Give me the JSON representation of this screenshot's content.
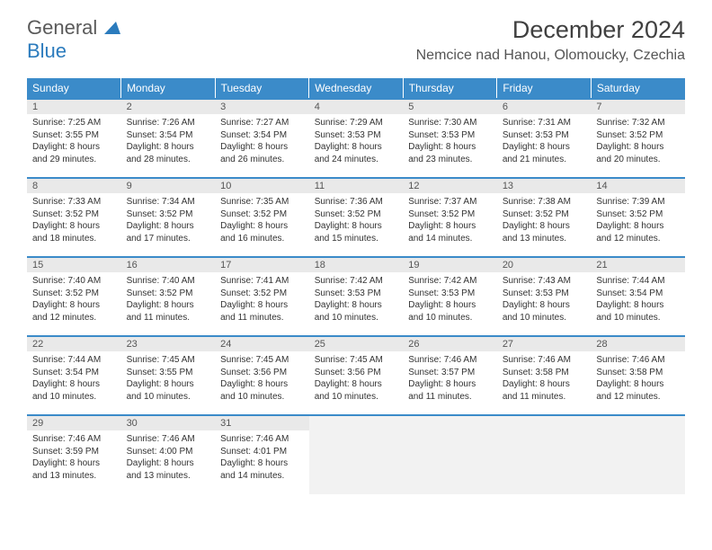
{
  "logo": {
    "word1": "General",
    "word2": "Blue"
  },
  "title": {
    "month_year": "December 2024",
    "location": "Nemcice nad Hanou, Olomoucky, Czechia"
  },
  "colors": {
    "header_bg": "#3b8bc9",
    "daynum_bg": "#e9e9e9",
    "row_border": "#3b8bc9",
    "empty_bg": "#f2f2f2"
  },
  "weekdays": [
    "Sunday",
    "Monday",
    "Tuesday",
    "Wednesday",
    "Thursday",
    "Friday",
    "Saturday"
  ],
  "weeks": [
    [
      {
        "n": "1",
        "sr": "Sunrise: 7:25 AM",
        "ss": "Sunset: 3:55 PM",
        "d1": "Daylight: 8 hours",
        "d2": "and 29 minutes."
      },
      {
        "n": "2",
        "sr": "Sunrise: 7:26 AM",
        "ss": "Sunset: 3:54 PM",
        "d1": "Daylight: 8 hours",
        "d2": "and 28 minutes."
      },
      {
        "n": "3",
        "sr": "Sunrise: 7:27 AM",
        "ss": "Sunset: 3:54 PM",
        "d1": "Daylight: 8 hours",
        "d2": "and 26 minutes."
      },
      {
        "n": "4",
        "sr": "Sunrise: 7:29 AM",
        "ss": "Sunset: 3:53 PM",
        "d1": "Daylight: 8 hours",
        "d2": "and 24 minutes."
      },
      {
        "n": "5",
        "sr": "Sunrise: 7:30 AM",
        "ss": "Sunset: 3:53 PM",
        "d1": "Daylight: 8 hours",
        "d2": "and 23 minutes."
      },
      {
        "n": "6",
        "sr": "Sunrise: 7:31 AM",
        "ss": "Sunset: 3:53 PM",
        "d1": "Daylight: 8 hours",
        "d2": "and 21 minutes."
      },
      {
        "n": "7",
        "sr": "Sunrise: 7:32 AM",
        "ss": "Sunset: 3:52 PM",
        "d1": "Daylight: 8 hours",
        "d2": "and 20 minutes."
      }
    ],
    [
      {
        "n": "8",
        "sr": "Sunrise: 7:33 AM",
        "ss": "Sunset: 3:52 PM",
        "d1": "Daylight: 8 hours",
        "d2": "and 18 minutes."
      },
      {
        "n": "9",
        "sr": "Sunrise: 7:34 AM",
        "ss": "Sunset: 3:52 PM",
        "d1": "Daylight: 8 hours",
        "d2": "and 17 minutes."
      },
      {
        "n": "10",
        "sr": "Sunrise: 7:35 AM",
        "ss": "Sunset: 3:52 PM",
        "d1": "Daylight: 8 hours",
        "d2": "and 16 minutes."
      },
      {
        "n": "11",
        "sr": "Sunrise: 7:36 AM",
        "ss": "Sunset: 3:52 PM",
        "d1": "Daylight: 8 hours",
        "d2": "and 15 minutes."
      },
      {
        "n": "12",
        "sr": "Sunrise: 7:37 AM",
        "ss": "Sunset: 3:52 PM",
        "d1": "Daylight: 8 hours",
        "d2": "and 14 minutes."
      },
      {
        "n": "13",
        "sr": "Sunrise: 7:38 AM",
        "ss": "Sunset: 3:52 PM",
        "d1": "Daylight: 8 hours",
        "d2": "and 13 minutes."
      },
      {
        "n": "14",
        "sr": "Sunrise: 7:39 AM",
        "ss": "Sunset: 3:52 PM",
        "d1": "Daylight: 8 hours",
        "d2": "and 12 minutes."
      }
    ],
    [
      {
        "n": "15",
        "sr": "Sunrise: 7:40 AM",
        "ss": "Sunset: 3:52 PM",
        "d1": "Daylight: 8 hours",
        "d2": "and 12 minutes."
      },
      {
        "n": "16",
        "sr": "Sunrise: 7:40 AM",
        "ss": "Sunset: 3:52 PM",
        "d1": "Daylight: 8 hours",
        "d2": "and 11 minutes."
      },
      {
        "n": "17",
        "sr": "Sunrise: 7:41 AM",
        "ss": "Sunset: 3:52 PM",
        "d1": "Daylight: 8 hours",
        "d2": "and 11 minutes."
      },
      {
        "n": "18",
        "sr": "Sunrise: 7:42 AM",
        "ss": "Sunset: 3:53 PM",
        "d1": "Daylight: 8 hours",
        "d2": "and 10 minutes."
      },
      {
        "n": "19",
        "sr": "Sunrise: 7:42 AM",
        "ss": "Sunset: 3:53 PM",
        "d1": "Daylight: 8 hours",
        "d2": "and 10 minutes."
      },
      {
        "n": "20",
        "sr": "Sunrise: 7:43 AM",
        "ss": "Sunset: 3:53 PM",
        "d1": "Daylight: 8 hours",
        "d2": "and 10 minutes."
      },
      {
        "n": "21",
        "sr": "Sunrise: 7:44 AM",
        "ss": "Sunset: 3:54 PM",
        "d1": "Daylight: 8 hours",
        "d2": "and 10 minutes."
      }
    ],
    [
      {
        "n": "22",
        "sr": "Sunrise: 7:44 AM",
        "ss": "Sunset: 3:54 PM",
        "d1": "Daylight: 8 hours",
        "d2": "and 10 minutes."
      },
      {
        "n": "23",
        "sr": "Sunrise: 7:45 AM",
        "ss": "Sunset: 3:55 PM",
        "d1": "Daylight: 8 hours",
        "d2": "and 10 minutes."
      },
      {
        "n": "24",
        "sr": "Sunrise: 7:45 AM",
        "ss": "Sunset: 3:56 PM",
        "d1": "Daylight: 8 hours",
        "d2": "and 10 minutes."
      },
      {
        "n": "25",
        "sr": "Sunrise: 7:45 AM",
        "ss": "Sunset: 3:56 PM",
        "d1": "Daylight: 8 hours",
        "d2": "and 10 minutes."
      },
      {
        "n": "26",
        "sr": "Sunrise: 7:46 AM",
        "ss": "Sunset: 3:57 PM",
        "d1": "Daylight: 8 hours",
        "d2": "and 11 minutes."
      },
      {
        "n": "27",
        "sr": "Sunrise: 7:46 AM",
        "ss": "Sunset: 3:58 PM",
        "d1": "Daylight: 8 hours",
        "d2": "and 11 minutes."
      },
      {
        "n": "28",
        "sr": "Sunrise: 7:46 AM",
        "ss": "Sunset: 3:58 PM",
        "d1": "Daylight: 8 hours",
        "d2": "and 12 minutes."
      }
    ],
    [
      {
        "n": "29",
        "sr": "Sunrise: 7:46 AM",
        "ss": "Sunset: 3:59 PM",
        "d1": "Daylight: 8 hours",
        "d2": "and 13 minutes."
      },
      {
        "n": "30",
        "sr": "Sunrise: 7:46 AM",
        "ss": "Sunset: 4:00 PM",
        "d1": "Daylight: 8 hours",
        "d2": "and 13 minutes."
      },
      {
        "n": "31",
        "sr": "Sunrise: 7:46 AM",
        "ss": "Sunset: 4:01 PM",
        "d1": "Daylight: 8 hours",
        "d2": "and 14 minutes."
      },
      null,
      null,
      null,
      null
    ]
  ]
}
